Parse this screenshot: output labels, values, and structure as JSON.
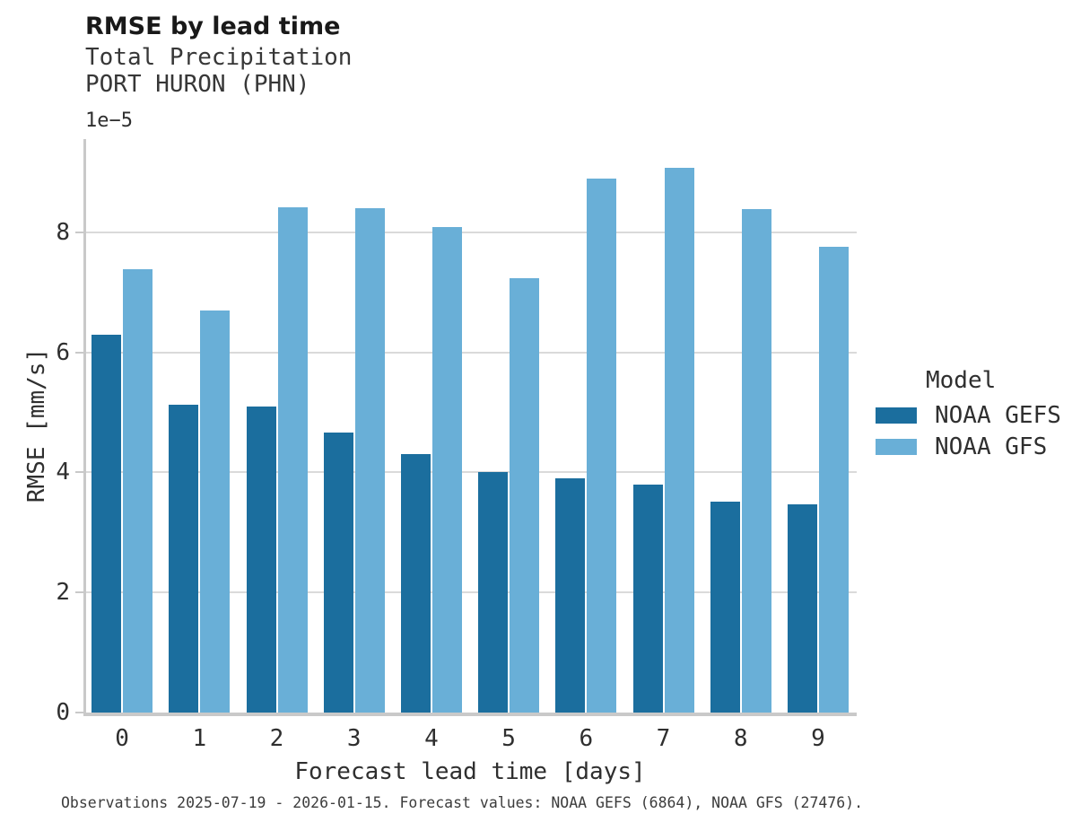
{
  "header": {
    "title": "RMSE by lead time",
    "subtitle_line1": "Total Precipitation",
    "subtitle_line2": "PORT HURON (PHN)"
  },
  "axes": {
    "y_offset_text": "1e−5",
    "xlabel": "Forecast lead time [days]",
    "ylabel": "RMSE [mm/s]"
  },
  "legend": {
    "title": "Model"
  },
  "caption": "Observations 2025-07-19 - 2026-01-15. Forecast values: NOAA GEFS (6864), NOAA GFS (27476).",
  "colors": {
    "gefs_bar": "#1b6e9e",
    "gfs_bar": "#69afd7",
    "gridline": "#dadada",
    "spine": "#c9c9c9"
  },
  "chart_data": {
    "type": "bar",
    "title": "RMSE by lead time",
    "subtitle": [
      "Total Precipitation",
      "PORT HURON (PHN)"
    ],
    "xlabel": "Forecast lead time [days]",
    "ylabel": "RMSE [mm/s]",
    "y_scale_offset_text": "1e−5",
    "categories": [
      "0",
      "1",
      "2",
      "3",
      "4",
      "5",
      "6",
      "7",
      "8",
      "9"
    ],
    "series": [
      {
        "name": "NOAA GEFS",
        "color": "#1b6e9e",
        "values": [
          6.3,
          5.12,
          5.1,
          4.66,
          4.31,
          4.0,
          3.9,
          3.8,
          3.51,
          3.47
        ]
      },
      {
        "name": "NOAA GFS",
        "color": "#69afd7",
        "values": [
          7.38,
          6.69,
          8.42,
          8.4,
          8.09,
          7.24,
          8.9,
          9.07,
          8.38,
          7.76
        ]
      }
    ],
    "ylim": [
      0,
      9.55
    ],
    "yticks": [
      0,
      2,
      4,
      6,
      8
    ],
    "grid": "horizontal",
    "legend_title": "Model",
    "legend_position": "right"
  }
}
